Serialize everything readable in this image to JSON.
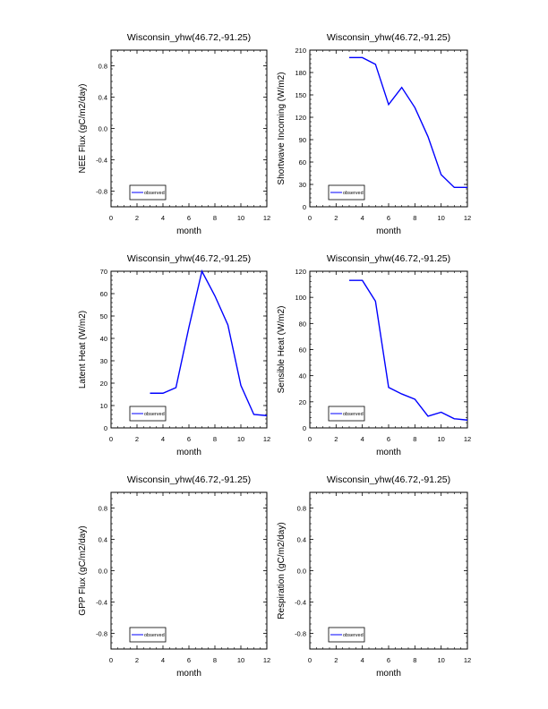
{
  "chart_data": [
    {
      "type": "line",
      "title": "Wisconsin_yhw(46.72,-91.25)",
      "xlabel": "month",
      "ylabel": "NEE Flux (gC/m2/day)",
      "xlim": [
        0,
        12
      ],
      "ylim": [
        -1,
        1
      ],
      "xticks": [
        0,
        2,
        4,
        6,
        8,
        10,
        12
      ],
      "yticks": [
        -0.8,
        -0.4,
        0.0,
        0.4,
        0.8
      ],
      "ytick_labels": [
        "-0.8",
        "-0.4",
        "0.0",
        "0.4",
        "0.8"
      ],
      "legend": {
        "entries": [
          "observed"
        ],
        "placement": "bottom-left"
      },
      "series": [
        {
          "name": "observed",
          "color": "#0000ff",
          "x": [],
          "values": []
        }
      ]
    },
    {
      "type": "line",
      "title": "Wisconsin_yhw(46.72,-91.25)",
      "xlabel": "month",
      "ylabel": "Shortwave Incoming (W/m2)",
      "xlim": [
        0,
        12
      ],
      "ylim": [
        0,
        210
      ],
      "xticks": [
        0,
        2,
        4,
        6,
        8,
        10,
        12
      ],
      "yticks": [
        0,
        30,
        60,
        90,
        120,
        150,
        180,
        210
      ],
      "ytick_labels": [
        "0",
        "30",
        "60",
        "90",
        "120",
        "150",
        "180",
        "210"
      ],
      "legend": {
        "entries": [
          "observed"
        ],
        "placement": "bottom-left"
      },
      "series": [
        {
          "name": "observed",
          "color": "#0000ff",
          "x": [
            3,
            4,
            5,
            6,
            7,
            8,
            9,
            10,
            11,
            12
          ],
          "values": [
            200,
            200,
            191,
            137,
            160,
            133,
            94,
            43,
            26,
            26
          ]
        }
      ]
    },
    {
      "type": "line",
      "title": "Wisconsin_yhw(46.72,-91.25)",
      "xlabel": "month",
      "ylabel": "Latent Heat (W/m2)",
      "xlim": [
        0,
        12
      ],
      "ylim": [
        0,
        70
      ],
      "xticks": [
        0,
        2,
        4,
        6,
        8,
        10,
        12
      ],
      "yticks": [
        0,
        10,
        20,
        30,
        40,
        50,
        60,
        70
      ],
      "ytick_labels": [
        "0",
        "10",
        "20",
        "30",
        "40",
        "50",
        "60",
        "70"
      ],
      "legend": {
        "entries": [
          "observed"
        ],
        "placement": "bottom-left"
      },
      "series": [
        {
          "name": "observed",
          "color": "#0000ff",
          "x": [
            3,
            4,
            5,
            6,
            7,
            8,
            9,
            10,
            11,
            12
          ],
          "values": [
            15.5,
            15.5,
            18,
            45,
            70,
            59,
            46,
            19,
            6,
            5.5
          ]
        }
      ]
    },
    {
      "type": "line",
      "title": "Wisconsin_yhw(46.72,-91.25)",
      "xlabel": "month",
      "ylabel": "Sensible Heat (W/m2)",
      "xlim": [
        0,
        12
      ],
      "ylim": [
        0,
        120
      ],
      "xticks": [
        0,
        2,
        4,
        6,
        8,
        10,
        12
      ],
      "yticks": [
        0,
        20,
        40,
        60,
        80,
        100,
        120
      ],
      "ytick_labels": [
        "0",
        "20",
        "40",
        "60",
        "80",
        "100",
        "120"
      ],
      "legend": {
        "entries": [
          "observed"
        ],
        "placement": "bottom-left"
      },
      "series": [
        {
          "name": "observed",
          "color": "#0000ff",
          "x": [
            3,
            4,
            5,
            6,
            7,
            8,
            9,
            10,
            11,
            12
          ],
          "values": [
            113,
            113,
            97,
            31,
            26,
            22,
            9,
            12,
            7,
            6
          ]
        }
      ]
    },
    {
      "type": "line",
      "title": "Wisconsin_yhw(46.72,-91.25)",
      "xlabel": "month",
      "ylabel": "GPP Flux (gC/m2/day)",
      "xlim": [
        0,
        12
      ],
      "ylim": [
        -1,
        1
      ],
      "xticks": [
        0,
        2,
        4,
        6,
        8,
        10,
        12
      ],
      "yticks": [
        -0.8,
        -0.4,
        0.0,
        0.4,
        0.8
      ],
      "ytick_labels": [
        "-0.8",
        "-0.4",
        "0.0",
        "0.4",
        "0.8"
      ],
      "legend": {
        "entries": [
          "observed"
        ],
        "placement": "bottom-left"
      },
      "series": [
        {
          "name": "observed",
          "color": "#0000ff",
          "x": [],
          "values": []
        }
      ]
    },
    {
      "type": "line",
      "title": "Wisconsin_yhw(46.72,-91.25)",
      "xlabel": "month",
      "ylabel": "Respiration (gC/m2/day)",
      "xlim": [
        0,
        12
      ],
      "ylim": [
        -1,
        1
      ],
      "xticks": [
        0,
        2,
        4,
        6,
        8,
        10,
        12
      ],
      "yticks": [
        -0.8,
        -0.4,
        0.0,
        0.4,
        0.8
      ],
      "ytick_labels": [
        "-0.8",
        "-0.4",
        "0.0",
        "0.4",
        "0.8"
      ],
      "legend": {
        "entries": [
          "observed"
        ],
        "placement": "bottom-left"
      },
      "series": [
        {
          "name": "observed",
          "color": "#0000ff",
          "x": [],
          "values": []
        }
      ]
    }
  ]
}
